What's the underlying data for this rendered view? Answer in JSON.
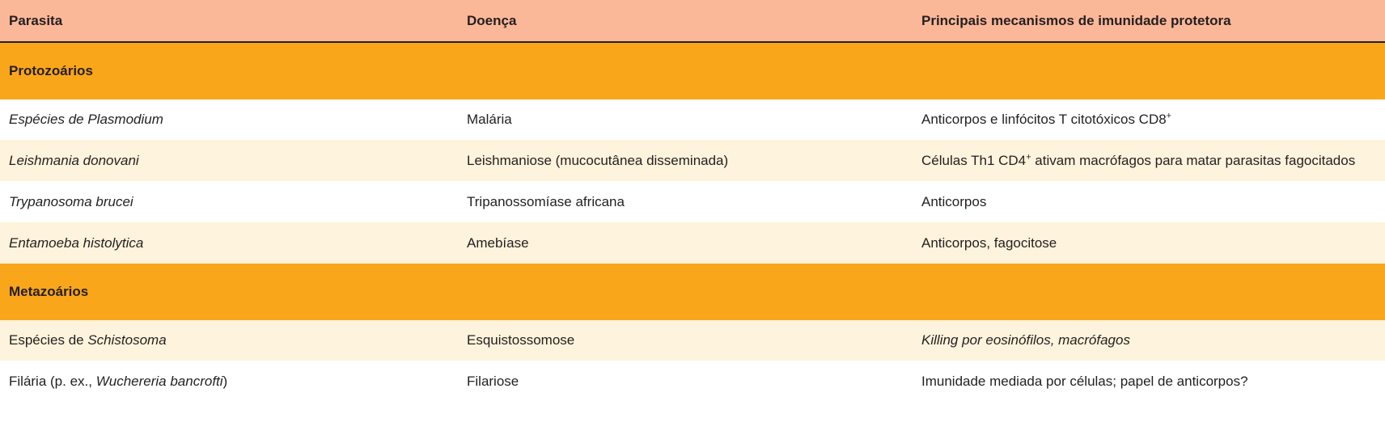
{
  "table": {
    "headers": [
      "Parasita",
      "Doença",
      "Principais mecanismos de imunidade protetora"
    ],
    "sections": [
      {
        "title": "Protozoários",
        "rows": [
          {
            "parasite_pre": "",
            "parasite_italic": "Espécies de Plasmodium",
            "parasite_post": "",
            "disease": "Malária",
            "mech_italic": "",
            "mech_text": "Anticorpos e linfócitos T citotóxicos CD8",
            "mech_sup": "+",
            "mech_rest": ""
          },
          {
            "parasite_pre": "",
            "parasite_italic": "Leishmania donovani",
            "parasite_post": "",
            "disease": "Leishmaniose (mucocutânea disseminada)",
            "mech_italic": "",
            "mech_text": "Células Th1 CD4",
            "mech_sup": "+",
            "mech_rest": " ativam macrófagos para matar parasitas fagocitados"
          },
          {
            "parasite_pre": "",
            "parasite_italic": "Trypanosoma brucei",
            "parasite_post": "",
            "disease": "Tripanossomíase africana",
            "mech_italic": "",
            "mech_text": "Anticorpos",
            "mech_sup": "",
            "mech_rest": ""
          },
          {
            "parasite_pre": "",
            "parasite_italic": "Entamoeba histolytica",
            "parasite_post": "",
            "disease": "Amebíase",
            "mech_italic": "",
            "mech_text": "Anticorpos, fagocitose",
            "mech_sup": "",
            "mech_rest": ""
          }
        ]
      },
      {
        "title": "Metazoários",
        "rows": [
          {
            "parasite_pre": "Espécies de ",
            "parasite_italic": "Schistosoma",
            "parasite_post": "",
            "disease": "Esquistossomose",
            "mech_italic": "Killing por eosinófilos, macrófagos",
            "mech_text": "",
            "mech_sup": "",
            "mech_rest": ""
          },
          {
            "parasite_pre": "Filária (p. ex., ",
            "parasite_italic": "Wuchereria bancrofti",
            "parasite_post": ")",
            "disease": "Filariose",
            "mech_italic": "",
            "mech_text": "Imunidade mediada por células; papel de anticorpos?",
            "mech_sup": "",
            "mech_rest": ""
          }
        ]
      }
    ]
  }
}
